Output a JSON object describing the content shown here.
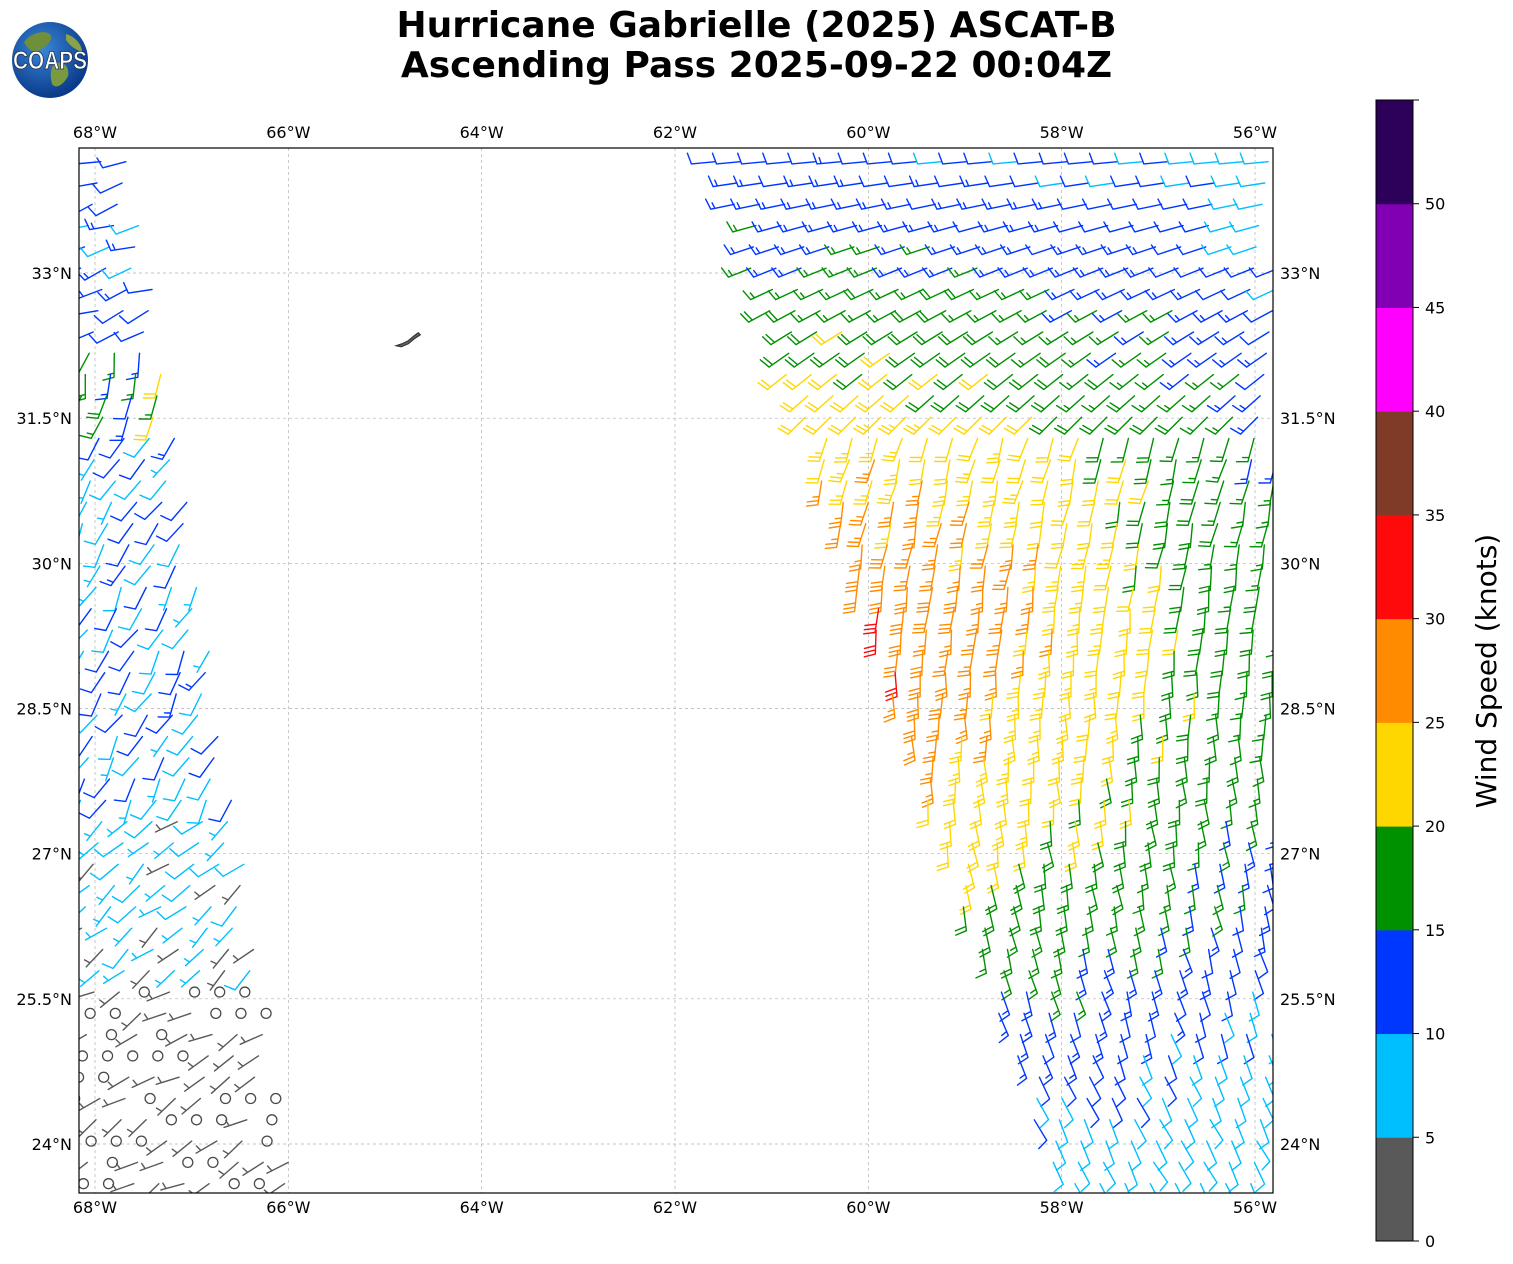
{
  "title": {
    "line1": "Hurricane Gabrielle (2025) ASCAT-B",
    "line2": "Ascending Pass 2025-09-22 00:04Z"
  },
  "logo": {
    "text": "COAPS",
    "icon": "earth-globe-icon"
  },
  "map": {
    "lon_range": [
      -68.2,
      -55.8
    ],
    "lat_range": [
      23.5,
      34.3
    ],
    "lon_ticks": [
      {
        "value": -68,
        "label": "68°W"
      },
      {
        "value": -66,
        "label": "66°W"
      },
      {
        "value": -64,
        "label": "64°W"
      },
      {
        "value": -62,
        "label": "62°W"
      },
      {
        "value": -60,
        "label": "60°W"
      },
      {
        "value": -58,
        "label": "58°W"
      },
      {
        "value": -56,
        "label": "56°W"
      }
    ],
    "lat_ticks": [
      {
        "value": 24,
        "label": "24°N"
      },
      {
        "value": 25.5,
        "label": "25.5°N"
      },
      {
        "value": 27,
        "label": "27°N"
      },
      {
        "value": 28.5,
        "label": "28.5°N"
      },
      {
        "value": 30,
        "label": "30°N"
      },
      {
        "value": 31.5,
        "label": "31.5°N"
      },
      {
        "value": 33,
        "label": "33°N"
      }
    ],
    "grid": true,
    "land": {
      "name": "Bermuda",
      "lon": -64.78,
      "lat": 32.3
    },
    "swaths": [
      {
        "name": "western swath",
        "edges": [
          [
            -68.2,
            34.2
          ],
          [
            -67.6,
            34.2
          ],
          [
            -65.9,
            23.4
          ],
          [
            -68.2,
            23.4
          ]
        ]
      },
      {
        "name": "eastern swath",
        "edges": [
          [
            -61.6,
            34.2
          ],
          [
            -55.8,
            34.2
          ],
          [
            -55.8,
            23.4
          ],
          [
            -58.0,
            23.4
          ]
        ]
      }
    ],
    "wind_regimes": [
      {
        "swath": 0,
        "lat_min": 23.5,
        "lat_max": 25.7,
        "speed_range": [
          0,
          5
        ],
        "direction_from": 240
      },
      {
        "swath": 0,
        "lat_min": 25.7,
        "lat_max": 27.5,
        "speed_range": [
          4,
          9
        ],
        "direction_from": 230
      },
      {
        "swath": 0,
        "lat_min": 27.5,
        "lat_max": 31.4,
        "speed_range": [
          6,
          13
        ],
        "direction_from": 210
      },
      {
        "swath": 0,
        "lat_min": 31.4,
        "lat_max": 32.3,
        "speed_range": [
          12,
          22
        ],
        "direction_from": 195
      },
      {
        "swath": 0,
        "lat_min": 32.3,
        "lat_max": 34.3,
        "speed_range": [
          8,
          14
        ],
        "direction_from": 250
      },
      {
        "swath": 1,
        "lat_min": 23.5,
        "lat_max": 34.3,
        "speed_range": [
          8,
          33
        ],
        "direction_from": 180,
        "note_center": {
          "lon": -60.2,
          "lat": 29.3
        }
      }
    ]
  },
  "colorbar": {
    "label": "Wind Speed (knots)",
    "bins": [
      {
        "min": 0,
        "max": 5,
        "color": "#595959"
      },
      {
        "min": 5,
        "max": 10,
        "color": "#00bfff"
      },
      {
        "min": 10,
        "max": 15,
        "color": "#0037ff"
      },
      {
        "min": 15,
        "max": 20,
        "color": "#009100"
      },
      {
        "min": 20,
        "max": 25,
        "color": "#ffd700"
      },
      {
        "min": 25,
        "max": 30,
        "color": "#ff8c00"
      },
      {
        "min": 30,
        "max": 35,
        "color": "#ff0a0a"
      },
      {
        "min": 35,
        "max": 40,
        "color": "#7f3b28"
      },
      {
        "min": 40,
        "max": 45,
        "color": "#ff00ff"
      },
      {
        "min": 45,
        "max": 50,
        "color": "#8200b4"
      },
      {
        "min": 50,
        "max": 55,
        "color": "#2d005a"
      }
    ],
    "tick_labels": [
      "0",
      "5",
      "10",
      "15",
      "20",
      "25",
      "30",
      "35",
      "40",
      "45",
      "50"
    ]
  }
}
